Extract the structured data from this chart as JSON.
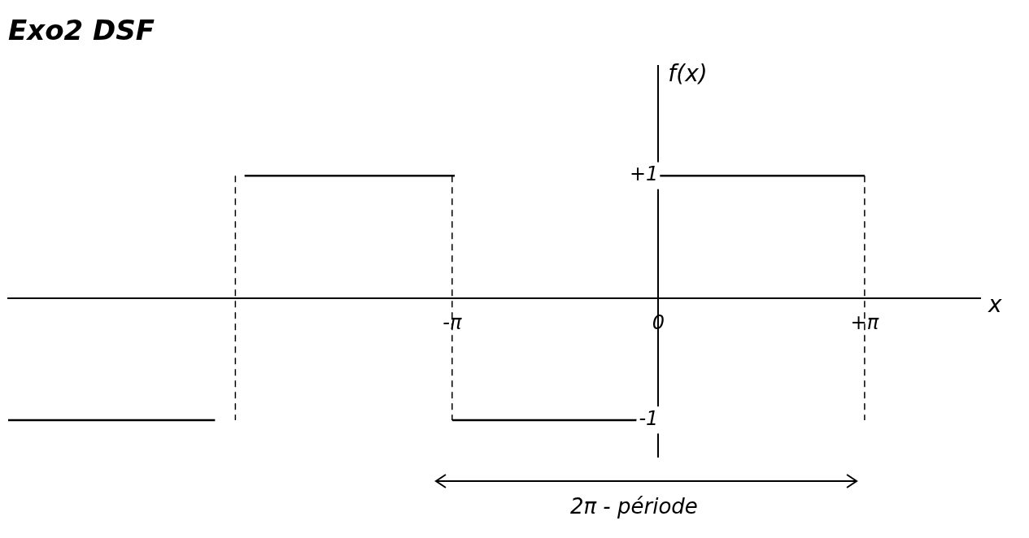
{
  "chart_data": {
    "type": "line",
    "title": "Exo2 DSF",
    "xlabel": "x",
    "ylabel": "f(x)",
    "xlim": [
      -9.9,
      4.9
    ],
    "ylim": [
      -1.3,
      1.9
    ],
    "xticks": [
      {
        "value": -3.14,
        "label": "-π"
      },
      0,
      {
        "value": 3.14,
        "label": "+π"
      }
    ],
    "yticks": [
      {
        "value": 1,
        "label": "+1"
      },
      {
        "value": -1,
        "label": "-1"
      }
    ],
    "series": [
      {
        "color": "#000000",
        "x": [
          -9.9,
          -6.75
        ],
        "values": [
          -1,
          -1
        ]
      },
      {
        "color": "#000000",
        "x": [
          -6.3,
          -3.1
        ],
        "values": [
          1,
          1
        ]
      },
      {
        "color": "#000000",
        "x": [
          -3.14,
          0
        ],
        "values": [
          -1,
          -1
        ]
      },
      {
        "color": "#000000",
        "x": [
          0,
          3.14
        ],
        "values": [
          1,
          1
        ]
      }
    ],
    "ref_lines": [
      {
        "axis": "x",
        "value": -6.44,
        "line_style": "dashed"
      },
      {
        "axis": "x",
        "value": -3.14,
        "line_style": "dashed"
      },
      {
        "axis": "x",
        "value": 3.14,
        "line_style": "dashed"
      }
    ],
    "annotations": [
      "2π - période"
    ],
    "grid": false,
    "marker": "none",
    "line_style": "solid"
  }
}
